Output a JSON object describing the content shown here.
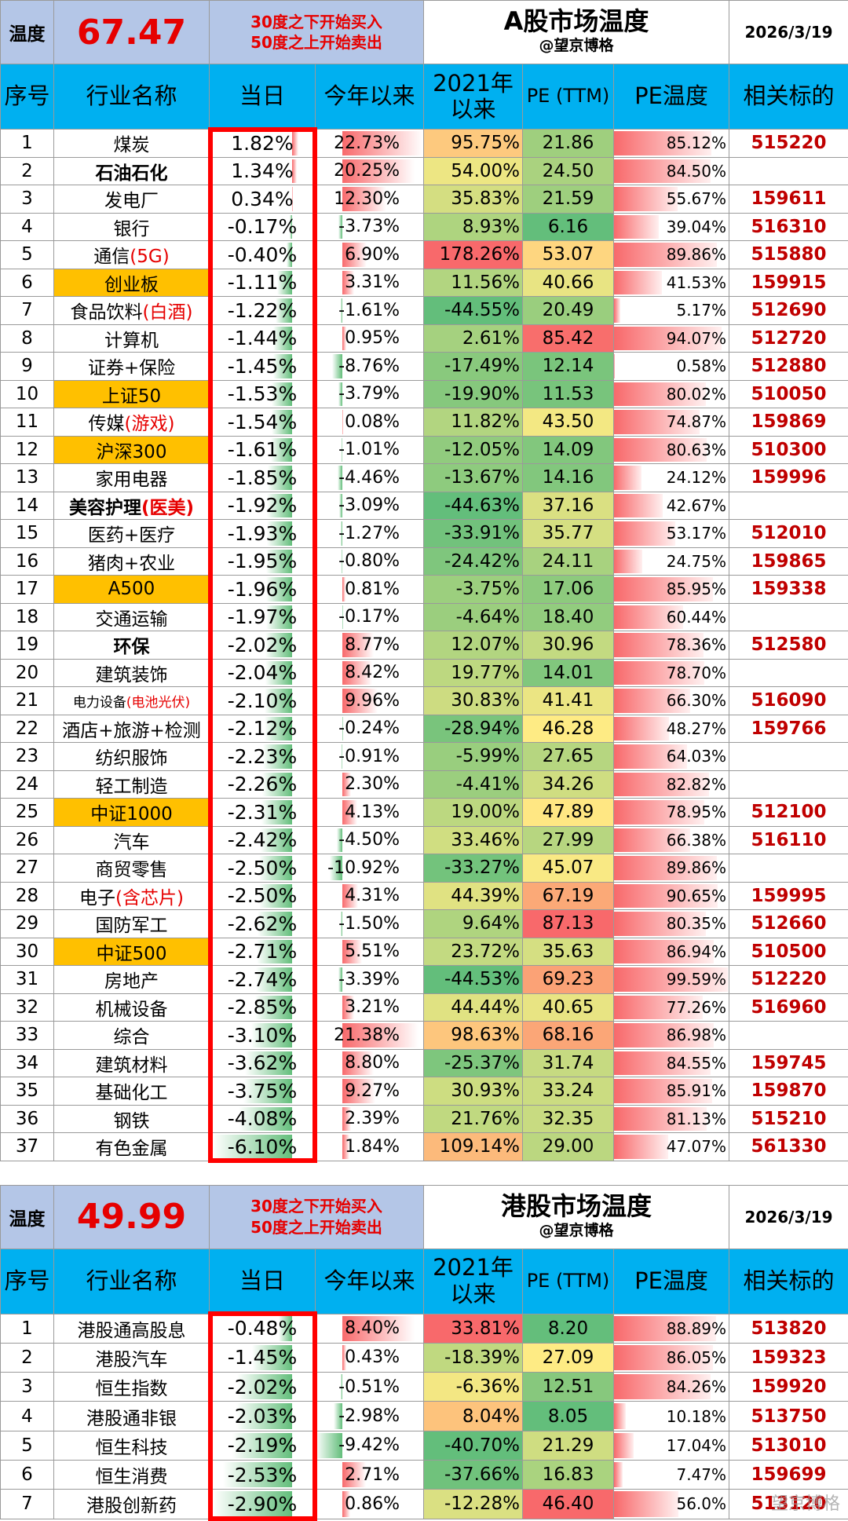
{
  "a_share": {
    "temp_label": "温度",
    "temp_value": "67.47",
    "rule_line1": "30度之下开始买入",
    "rule_line2": "50度之上开始卖出",
    "title": "A股市场温度",
    "author": "@望京博格",
    "date": "2026/3/19",
    "headers": {
      "idx": "序号",
      "name": "行业名称",
      "day": "当日",
      "ytd": "今年以来",
      "since2021": "2021年以来",
      "pe": "PE (TTM)",
      "pe_temp": "PE温度",
      "code": "相关标的"
    },
    "rows": [
      {
        "idx": "1",
        "name": "煤炭",
        "hl": "",
        "type": "normal",
        "day": "1.82%",
        "ytd": "22.73%",
        "since": "95.75%",
        "pe": "21.86",
        "pet": "85.12%",
        "code": "515220"
      },
      {
        "idx": "2",
        "name": "石油石化",
        "hl": "",
        "type": "bold",
        "day": "1.34%",
        "ytd": "20.25%",
        "since": "54.00%",
        "pe": "24.50",
        "pet": "84.50%",
        "code": ""
      },
      {
        "idx": "3",
        "name": "发电厂",
        "hl": "",
        "type": "normal",
        "day": "0.34%",
        "ytd": "12.30%",
        "since": "35.83%",
        "pe": "21.59",
        "pet": "55.67%",
        "code": "159611"
      },
      {
        "idx": "4",
        "name": "银行",
        "hl": "",
        "type": "normal",
        "day": "-0.17%",
        "ytd": "-3.73%",
        "since": "8.93%",
        "pe": "6.16",
        "pet": "39.04%",
        "code": "516310"
      },
      {
        "idx": "5",
        "name": "通信",
        "hl": "(5G)",
        "type": "normal",
        "day": "-0.40%",
        "ytd": "6.90%",
        "since": "178.26%",
        "pe": "53.07",
        "pet": "89.86%",
        "code": "515880"
      },
      {
        "idx": "6",
        "name": "创业板",
        "hl": "",
        "type": "index",
        "day": "-1.11%",
        "ytd": "3.31%",
        "since": "11.56%",
        "pe": "40.66",
        "pet": "41.53%",
        "code": "159915"
      },
      {
        "idx": "7",
        "name": "食品饮料",
        "hl": "(白酒)",
        "type": "normal",
        "day": "-1.22%",
        "ytd": "-1.61%",
        "since": "-44.55%",
        "pe": "20.49",
        "pet": "5.17%",
        "code": "512690"
      },
      {
        "idx": "8",
        "name": "计算机",
        "hl": "",
        "type": "normal",
        "day": "-1.44%",
        "ytd": "0.95%",
        "since": "2.61%",
        "pe": "85.42",
        "pet": "94.07%",
        "code": "512720"
      },
      {
        "idx": "9",
        "name": "证券+保险",
        "hl": "",
        "type": "normal",
        "day": "-1.45%",
        "ytd": "-8.76%",
        "since": "-17.49%",
        "pe": "12.14",
        "pet": "0.58%",
        "code": "512880"
      },
      {
        "idx": "10",
        "name": "上证50",
        "hl": "",
        "type": "index",
        "day": "-1.53%",
        "ytd": "-3.79%",
        "since": "-19.90%",
        "pe": "11.53",
        "pet": "80.02%",
        "code": "510050"
      },
      {
        "idx": "11",
        "name": "传媒",
        "hl": "(游戏)",
        "type": "normal",
        "day": "-1.54%",
        "ytd": "0.08%",
        "since": "11.82%",
        "pe": "43.50",
        "pet": "74.87%",
        "code": "159869"
      },
      {
        "idx": "12",
        "name": "沪深300",
        "hl": "",
        "type": "index",
        "day": "-1.61%",
        "ytd": "-1.01%",
        "since": "-12.05%",
        "pe": "14.09",
        "pet": "80.63%",
        "code": "510300"
      },
      {
        "idx": "13",
        "name": "家用电器",
        "hl": "",
        "type": "normal",
        "day": "-1.85%",
        "ytd": "-4.46%",
        "since": "-13.67%",
        "pe": "14.16",
        "pet": "24.12%",
        "code": "159996"
      },
      {
        "idx": "14",
        "name": "美容护理",
        "hl": "(医美)",
        "type": "bold",
        "day": "-1.92%",
        "ytd": "-3.09%",
        "since": "-44.63%",
        "pe": "37.16",
        "pet": "42.67%",
        "code": ""
      },
      {
        "idx": "15",
        "name": "医药+医疗",
        "hl": "",
        "type": "normal",
        "day": "-1.93%",
        "ytd": "-1.27%",
        "since": "-33.91%",
        "pe": "35.77",
        "pet": "53.17%",
        "code": "512010"
      },
      {
        "idx": "16",
        "name": "猪肉+农业",
        "hl": "",
        "type": "normal",
        "day": "-1.95%",
        "ytd": "-0.80%",
        "since": "-24.42%",
        "pe": "24.11",
        "pet": "24.75%",
        "code": "159865"
      },
      {
        "idx": "17",
        "name": "A500",
        "hl": "",
        "type": "index",
        "day": "-1.96%",
        "ytd": "0.81%",
        "since": "-3.75%",
        "pe": "17.06",
        "pet": "85.95%",
        "code": "159338"
      },
      {
        "idx": "18",
        "name": "交通运输",
        "hl": "",
        "type": "normal",
        "day": "-1.97%",
        "ytd": "-0.17%",
        "since": "-4.64%",
        "pe": "18.40",
        "pet": "60.44%",
        "code": ""
      },
      {
        "idx": "19",
        "name": "环保",
        "hl": "",
        "type": "bold",
        "day": "-2.02%",
        "ytd": "8.77%",
        "since": "12.07%",
        "pe": "30.96",
        "pet": "78.36%",
        "code": "512580"
      },
      {
        "idx": "20",
        "name": "建筑装饰",
        "hl": "",
        "type": "normal",
        "day": "-2.04%",
        "ytd": "8.42%",
        "since": "19.77%",
        "pe": "14.01",
        "pet": "78.70%",
        "code": ""
      },
      {
        "idx": "21",
        "name": "电力设备",
        "hl": "(电池光伏)",
        "type": "small",
        "day": "-2.10%",
        "ytd": "9.96%",
        "since": "30.83%",
        "pe": "41.41",
        "pet": "66.30%",
        "code": "516090"
      },
      {
        "idx": "22",
        "name": "酒店+旅游+检测",
        "hl": "",
        "type": "normal",
        "day": "-2.12%",
        "ytd": "-0.24%",
        "since": "-28.94%",
        "pe": "46.28",
        "pet": "48.27%",
        "code": "159766"
      },
      {
        "idx": "23",
        "name": "纺织服饰",
        "hl": "",
        "type": "normal",
        "day": "-2.23%",
        "ytd": "-0.91%",
        "since": "-5.99%",
        "pe": "27.65",
        "pet": "64.03%",
        "code": ""
      },
      {
        "idx": "24",
        "name": "轻工制造",
        "hl": "",
        "type": "normal",
        "day": "-2.26%",
        "ytd": "2.30%",
        "since": "-4.41%",
        "pe": "34.26",
        "pet": "82.82%",
        "code": ""
      },
      {
        "idx": "25",
        "name": "中证1000",
        "hl": "",
        "type": "index",
        "day": "-2.31%",
        "ytd": "4.13%",
        "since": "19.00%",
        "pe": "47.89",
        "pet": "78.95%",
        "code": "512100"
      },
      {
        "idx": "26",
        "name": "汽车",
        "hl": "",
        "type": "normal",
        "day": "-2.42%",
        "ytd": "-4.50%",
        "since": "33.46%",
        "pe": "27.99",
        "pet": "66.38%",
        "code": "516110"
      },
      {
        "idx": "27",
        "name": "商贸零售",
        "hl": "",
        "type": "normal",
        "day": "-2.50%",
        "ytd": "-10.92%",
        "since": "-33.27%",
        "pe": "45.07",
        "pet": "89.86%",
        "code": ""
      },
      {
        "idx": "28",
        "name": "电子",
        "hl": "(含芯片)",
        "type": "normal",
        "day": "-2.50%",
        "ytd": "4.31%",
        "since": "44.39%",
        "pe": "67.19",
        "pet": "90.65%",
        "code": "159995"
      },
      {
        "idx": "29",
        "name": "国防军工",
        "hl": "",
        "type": "normal",
        "day": "-2.62%",
        "ytd": "-1.50%",
        "since": "9.64%",
        "pe": "87.13",
        "pet": "80.35%",
        "code": "512660"
      },
      {
        "idx": "30",
        "name": "中证500",
        "hl": "",
        "type": "index",
        "day": "-2.71%",
        "ytd": "5.51%",
        "since": "23.72%",
        "pe": "35.63",
        "pet": "86.94%",
        "code": "510500"
      },
      {
        "idx": "31",
        "name": "房地产",
        "hl": "",
        "type": "normal",
        "day": "-2.74%",
        "ytd": "-3.39%",
        "since": "-44.53%",
        "pe": "69.23",
        "pet": "99.59%",
        "code": "512220"
      },
      {
        "idx": "32",
        "name": "机械设备",
        "hl": "",
        "type": "normal",
        "day": "-2.85%",
        "ytd": "3.21%",
        "since": "44.44%",
        "pe": "40.65",
        "pet": "77.26%",
        "code": "516960"
      },
      {
        "idx": "33",
        "name": "综合",
        "hl": "",
        "type": "normal",
        "day": "-3.10%",
        "ytd": "21.38%",
        "since": "98.63%",
        "pe": "68.16",
        "pet": "86.98%",
        "code": ""
      },
      {
        "idx": "34",
        "name": "建筑材料",
        "hl": "",
        "type": "normal",
        "day": "-3.62%",
        "ytd": "8.80%",
        "since": "-25.37%",
        "pe": "31.74",
        "pet": "84.55%",
        "code": "159745"
      },
      {
        "idx": "35",
        "name": "基础化工",
        "hl": "",
        "type": "normal",
        "day": "-3.75%",
        "ytd": "9.27%",
        "since": "30.93%",
        "pe": "33.24",
        "pet": "85.91%",
        "code": "159870"
      },
      {
        "idx": "36",
        "name": "钢铁",
        "hl": "",
        "type": "normal",
        "day": "-4.08%",
        "ytd": "2.39%",
        "since": "21.76%",
        "pe": "32.35",
        "pet": "81.13%",
        "code": "515210"
      },
      {
        "idx": "37",
        "name": "有色金属",
        "hl": "",
        "type": "normal",
        "day": "-6.10%",
        "ytd": "1.84%",
        "since": "109.14%",
        "pe": "29.00",
        "pet": "47.07%",
        "code": "561330"
      }
    ]
  },
  "hk_share": {
    "temp_label": "温度",
    "temp_value": "49.99",
    "rule_line1": "30度之下开始买入",
    "rule_line2": "50度之上开始卖出",
    "title": "港股市场温度",
    "author": "@望京博格",
    "date": "2026/3/19",
    "headers": {
      "idx": "序号",
      "name": "行业名称",
      "day": "当日",
      "ytd": "今年以来",
      "since2021": "2021年以来",
      "pe": "PE (TTM)",
      "pe_temp": "PE温度",
      "code": "相关标的"
    },
    "rows": [
      {
        "idx": "1",
        "name": "港股通高股息",
        "hl": "",
        "type": "normal",
        "day": "-0.48%",
        "ytd": "8.40%",
        "since": "33.81%",
        "pe": "8.20",
        "pet": "88.89%",
        "code": "513820"
      },
      {
        "idx": "2",
        "name": "港股汽车",
        "hl": "",
        "type": "normal",
        "day": "-1.45%",
        "ytd": "0.43%",
        "since": "-18.39%",
        "pe": "27.09",
        "pet": "86.05%",
        "code": "159323"
      },
      {
        "idx": "3",
        "name": "恒生指数",
        "hl": "",
        "type": "normal",
        "day": "-2.02%",
        "ytd": "-0.51%",
        "since": "-6.36%",
        "pe": "12.51",
        "pet": "84.26%",
        "code": "159920"
      },
      {
        "idx": "4",
        "name": "港股通非银",
        "hl": "",
        "type": "normal",
        "day": "-2.03%",
        "ytd": "-2.98%",
        "since": "8.04%",
        "pe": "8.05",
        "pet": "10.18%",
        "code": "513750"
      },
      {
        "idx": "5",
        "name": "恒生科技",
        "hl": "",
        "type": "normal",
        "day": "-2.19%",
        "ytd": "-9.42%",
        "since": "-40.70%",
        "pe": "21.29",
        "pet": "17.04%",
        "code": "513010"
      },
      {
        "idx": "6",
        "name": "恒生消费",
        "hl": "",
        "type": "normal",
        "day": "-2.53%",
        "ytd": "2.71%",
        "since": "-37.66%",
        "pe": "16.83",
        "pet": "7.47%",
        "code": "159699"
      },
      {
        "idx": "7",
        "name": "港股创新药",
        "hl": "",
        "type": "normal",
        "day": "-2.90%",
        "ytd": "0.86%",
        "since": "-12.28%",
        "pe": "46.40",
        "pet": "56.0%",
        "code": "513120"
      }
    ]
  },
  "watermark": "望京博格",
  "colors": {
    "header_blue": "#00b0f0",
    "temp_bg": "#b4c6e7",
    "index_orange": "#ffc000",
    "code_red": "#c00000",
    "alert_red": "#e60000"
  }
}
